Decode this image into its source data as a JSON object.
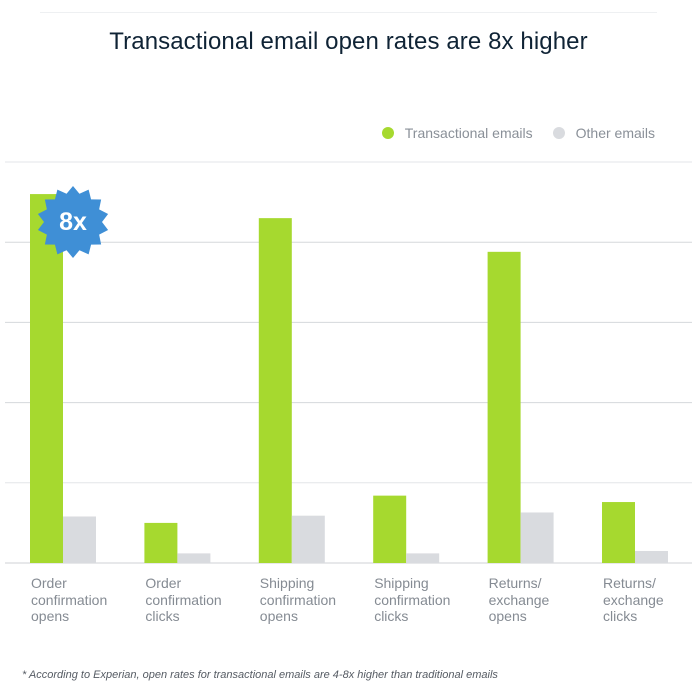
{
  "title": "Transactional email open rates are 8x higher",
  "legend": [
    {
      "label": "Transactional emails",
      "color": "#a6d92f"
    },
    {
      "label": "Other emails",
      "color": "#d9dbdf"
    }
  ],
  "badge": {
    "text": "8x",
    "color": "#3f8fd6"
  },
  "footnote": "* According to Experian, open rates for transactional emails are 4-8x higher than traditional emails",
  "chart_data": {
    "type": "bar",
    "title": "Transactional email open rates are 8x higher",
    "categories": [
      "Order\nconfirmation\nopens",
      "Order\nconfirmation\nclicks",
      "Shipping\nconfirmation\nopens",
      "Shipping\nconfirmation\nclicks",
      "Returns/\nexchange\nopens",
      "Returns/\nexchange\nclicks"
    ],
    "series": [
      {
        "name": "Transactional emails",
        "color": "#a6d92f",
        "values": [
          4.6,
          0.5,
          4.3,
          0.84,
          3.88,
          0.76
        ]
      },
      {
        "name": "Other emails",
        "color": "#d9dbdf",
        "values": [
          0.58,
          0.12,
          0.59,
          0.12,
          0.63,
          0.15
        ]
      }
    ],
    "ylim": [
      0,
      5
    ],
    "grid": true,
    "legend_position": "top-right"
  }
}
